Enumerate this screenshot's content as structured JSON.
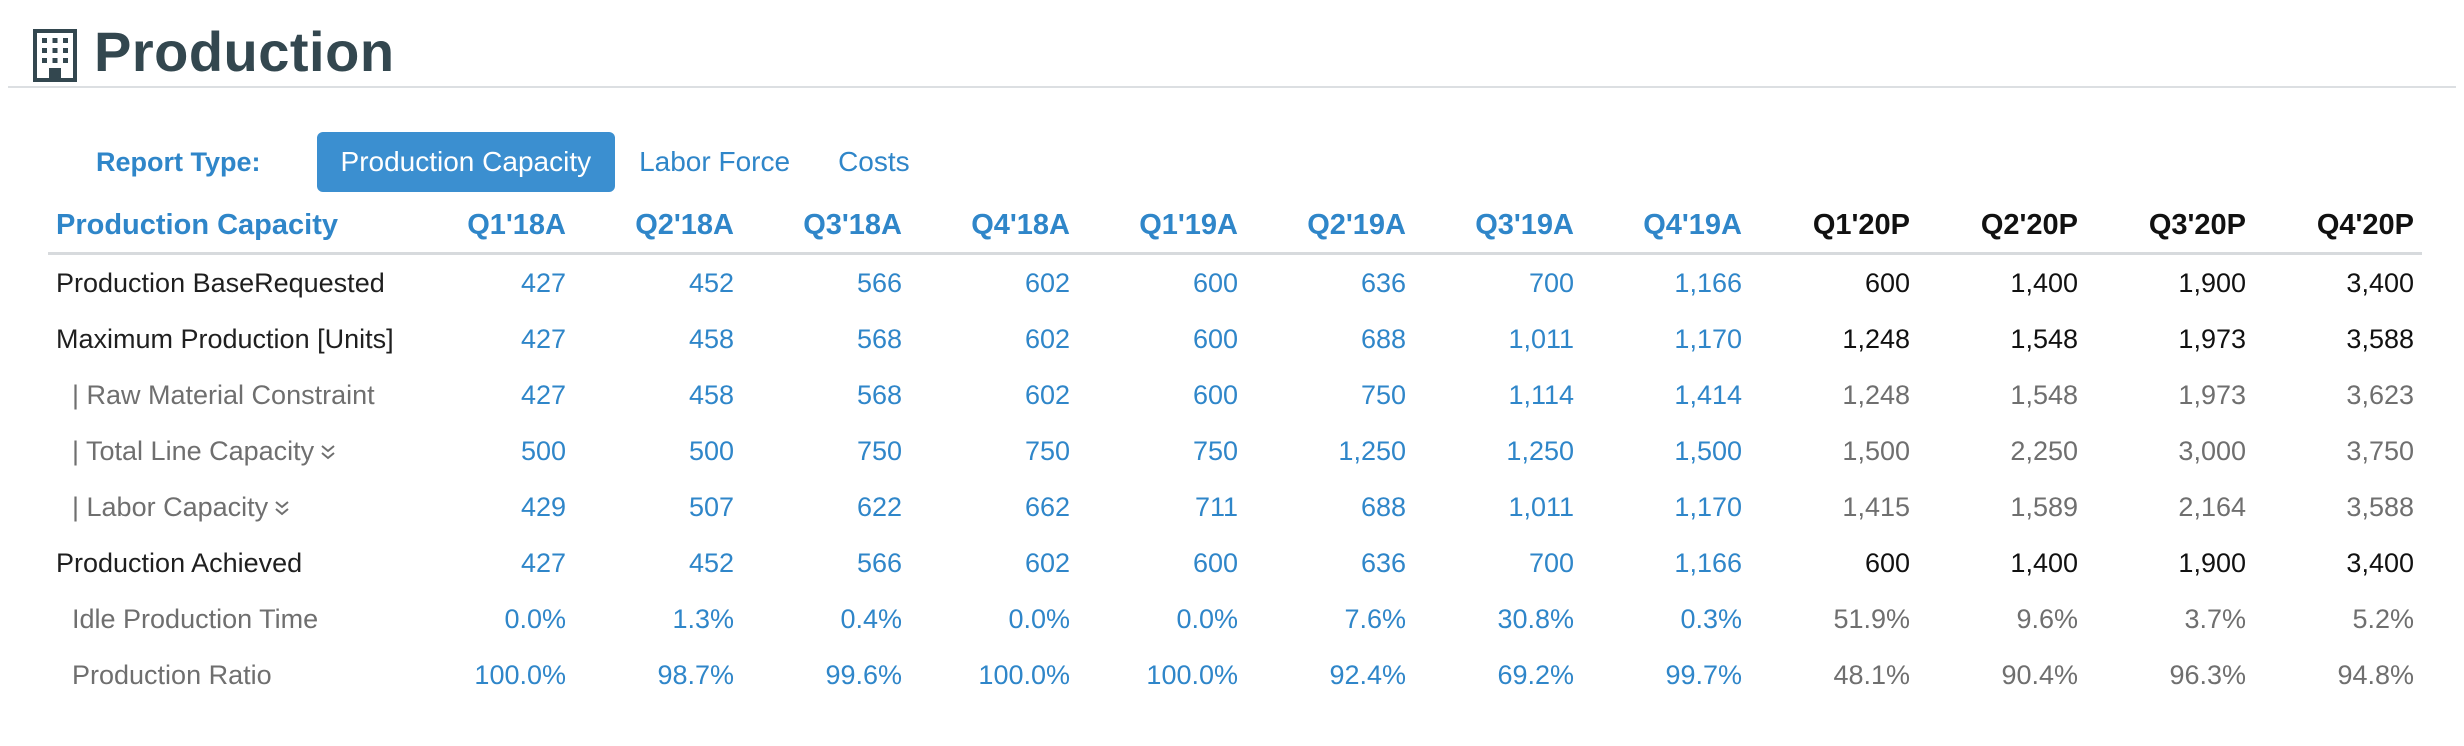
{
  "header": {
    "title": "Production",
    "icon": "building-icon"
  },
  "report_type": {
    "label": "Report Type:",
    "options": [
      "Production Capacity",
      "Labor Force",
      "Costs"
    ],
    "selected": "Production Capacity"
  },
  "colors": {
    "accent": "#2f86c9",
    "active_tab_bg": "#3b8fd0",
    "title": "#33474f",
    "projected_text": "#111111",
    "sub_text": "#6f6f6f"
  },
  "table": {
    "title": "Production Capacity",
    "columns": [
      "Q1'18A",
      "Q2'18A",
      "Q3'18A",
      "Q4'18A",
      "Q1'19A",
      "Q2'19A",
      "Q3'19A",
      "Q4'19A",
      "Q1'20P",
      "Q2'20P",
      "Q3'20P",
      "Q4'20P"
    ],
    "rows": [
      {
        "label": "Production BaseRequested",
        "values": [
          "427",
          "452",
          "566",
          "602",
          "600",
          "636",
          "700",
          "1,166",
          "600",
          "1,400",
          "1,900",
          "3,400"
        ]
      },
      {
        "label": "Maximum Production [Units]",
        "values": [
          "427",
          "458",
          "568",
          "602",
          "600",
          "688",
          "1,011",
          "1,170",
          "1,248",
          "1,548",
          "1,973",
          "3,588"
        ]
      },
      {
        "label": "| Raw Material Constraint",
        "values": [
          "427",
          "458",
          "568",
          "602",
          "600",
          "750",
          "1,114",
          "1,414",
          "1,248",
          "1,548",
          "1,973",
          "3,623"
        ]
      },
      {
        "label": "| Total Line Capacity",
        "values": [
          "500",
          "500",
          "750",
          "750",
          "750",
          "1,250",
          "1,250",
          "1,500",
          "1,500",
          "2,250",
          "3,000",
          "3,750"
        ]
      },
      {
        "label": "| Labor Capacity",
        "values": [
          "429",
          "507",
          "622",
          "662",
          "711",
          "688",
          "1,011",
          "1,170",
          "1,415",
          "1,589",
          "2,164",
          "3,588"
        ]
      },
      {
        "label": "Production Achieved",
        "values": [
          "427",
          "452",
          "566",
          "602",
          "600",
          "636",
          "700",
          "1,166",
          "600",
          "1,400",
          "1,900",
          "3,400"
        ]
      },
      {
        "label": "Idle Production Time",
        "values": [
          "0.0%",
          "1.3%",
          "0.4%",
          "0.0%",
          "0.0%",
          "7.6%",
          "30.8%",
          "0.3%",
          "51.9%",
          "9.6%",
          "3.7%",
          "5.2%"
        ]
      },
      {
        "label": "Production Ratio",
        "values": [
          "100.0%",
          "98.7%",
          "99.6%",
          "100.0%",
          "100.0%",
          "92.4%",
          "69.2%",
          "99.7%",
          "48.1%",
          "90.4%",
          "96.3%",
          "94.8%"
        ]
      }
    ]
  }
}
